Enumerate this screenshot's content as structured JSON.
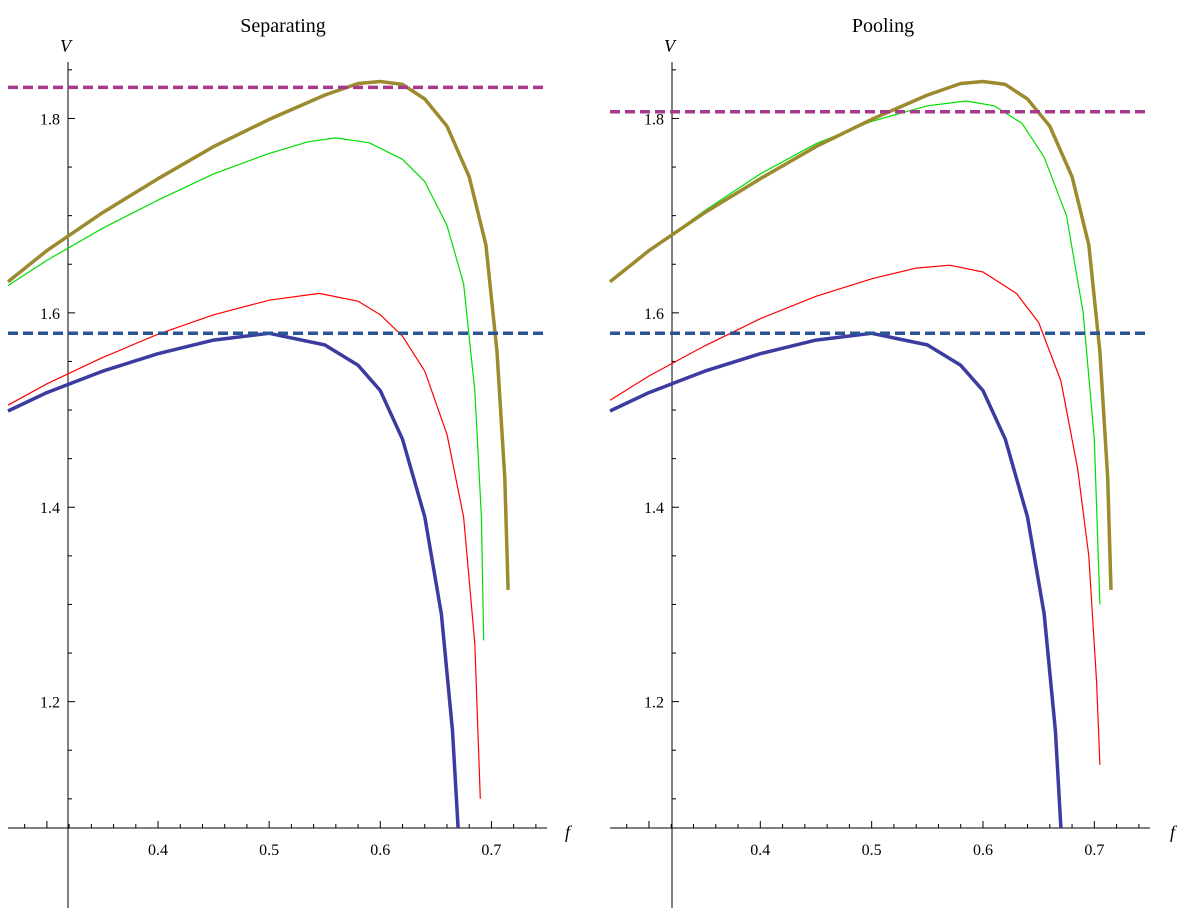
{
  "chart_data": [
    {
      "type": "line",
      "title": "Separating",
      "xlabel": "f",
      "ylabel": "V",
      "xlim": [
        0.265,
        0.75
      ],
      "ylim": [
        1.07,
        1.855
      ],
      "x_ticks": [
        0.4,
        0.5,
        0.6,
        0.7
      ],
      "x_tick_labels": [
        "0.4",
        "0.5",
        "0.6",
        "0.7"
      ],
      "y_ticks": [
        1.2,
        1.4,
        1.6,
        1.8
      ],
      "y_tick_labels": [
        "1.2",
        "1.4",
        "1.6",
        "1.8"
      ],
      "grid": false,
      "series": [
        {
          "color": "#3b3ba0",
          "style": "solid",
          "width": "thick",
          "points": [
            [
              0.265,
              1.499
            ],
            [
              0.3,
              1.518
            ],
            [
              0.35,
              1.54
            ],
            [
              0.4,
              1.558
            ],
            [
              0.45,
              1.572
            ],
            [
              0.5,
              1.579
            ],
            [
              0.55,
              1.567
            ],
            [
              0.58,
              1.546
            ],
            [
              0.6,
              1.52
            ],
            [
              0.62,
              1.47
            ],
            [
              0.64,
              1.39
            ],
            [
              0.655,
              1.29
            ],
            [
              0.665,
              1.17
            ],
            [
              0.67,
              1.07
            ]
          ]
        },
        {
          "color": "#ff0000",
          "style": "solid",
          "width": "thin",
          "points": [
            [
              0.265,
              1.505
            ],
            [
              0.3,
              1.527
            ],
            [
              0.35,
              1.554
            ],
            [
              0.4,
              1.578
            ],
            [
              0.45,
              1.598
            ],
            [
              0.5,
              1.613
            ],
            [
              0.545,
              1.62
            ],
            [
              0.58,
              1.612
            ],
            [
              0.6,
              1.598
            ],
            [
              0.62,
              1.576
            ],
            [
              0.64,
              1.54
            ],
            [
              0.66,
              1.475
            ],
            [
              0.675,
              1.39
            ],
            [
              0.685,
              1.26
            ],
            [
              0.69,
              1.1
            ]
          ]
        },
        {
          "color": "#00dd00",
          "style": "solid",
          "width": "thin",
          "points": [
            [
              0.265,
              1.628
            ],
            [
              0.3,
              1.654
            ],
            [
              0.35,
              1.687
            ],
            [
              0.4,
              1.716
            ],
            [
              0.45,
              1.743
            ],
            [
              0.5,
              1.764
            ],
            [
              0.535,
              1.776
            ],
            [
              0.56,
              1.78
            ],
            [
              0.59,
              1.775
            ],
            [
              0.62,
              1.758
            ],
            [
              0.64,
              1.735
            ],
            [
              0.66,
              1.69
            ],
            [
              0.675,
              1.63
            ],
            [
              0.685,
              1.52
            ],
            [
              0.691,
              1.39
            ],
            [
              0.693,
              1.263
            ]
          ]
        },
        {
          "color": "#9b8a2e",
          "style": "solid",
          "width": "thick",
          "points": [
            [
              0.265,
              1.632
            ],
            [
              0.3,
              1.664
            ],
            [
              0.35,
              1.703
            ],
            [
              0.4,
              1.738
            ],
            [
              0.45,
              1.771
            ],
            [
              0.5,
              1.799
            ],
            [
              0.55,
              1.824
            ],
            [
              0.58,
              1.836
            ],
            [
              0.6,
              1.838
            ],
            [
              0.62,
              1.835
            ],
            [
              0.64,
              1.82
            ],
            [
              0.66,
              1.792
            ],
            [
              0.68,
              1.74
            ],
            [
              0.695,
              1.67
            ],
            [
              0.705,
              1.56
            ],
            [
              0.712,
              1.43
            ],
            [
              0.715,
              1.315
            ]
          ]
        },
        {
          "color": "#a83a8e",
          "style": "dashed",
          "width": "thick",
          "points": [
            [
              0.265,
              1.832
            ],
            [
              0.75,
              1.832
            ]
          ]
        },
        {
          "color": "#2a5595",
          "style": "dashed",
          "width": "thick",
          "points": [
            [
              0.265,
              1.579
            ],
            [
              0.75,
              1.579
            ]
          ]
        }
      ]
    },
    {
      "type": "line",
      "title": "Pooling",
      "xlabel": "f",
      "ylabel": "V",
      "xlim": [
        0.265,
        0.75
      ],
      "ylim": [
        1.07,
        1.855
      ],
      "x_ticks": [
        0.4,
        0.5,
        0.6,
        0.7
      ],
      "x_tick_labels": [
        "0.4",
        "0.5",
        "0.6",
        "0.7"
      ],
      "y_ticks": [
        1.2,
        1.4,
        1.6,
        1.8
      ],
      "y_tick_labels": [
        "1.2",
        "1.4",
        "1.6",
        "1.8"
      ],
      "grid": false,
      "series": [
        {
          "color": "#3b3ba0",
          "style": "solid",
          "width": "thick",
          "points": [
            [
              0.265,
              1.499
            ],
            [
              0.3,
              1.518
            ],
            [
              0.35,
              1.54
            ],
            [
              0.4,
              1.558
            ],
            [
              0.45,
              1.572
            ],
            [
              0.5,
              1.579
            ],
            [
              0.55,
              1.567
            ],
            [
              0.58,
              1.546
            ],
            [
              0.6,
              1.52
            ],
            [
              0.62,
              1.47
            ],
            [
              0.64,
              1.39
            ],
            [
              0.655,
              1.29
            ],
            [
              0.665,
              1.17
            ],
            [
              0.67,
              1.07
            ]
          ]
        },
        {
          "color": "#ff0000",
          "style": "solid",
          "width": "thin",
          "points": [
            [
              0.265,
              1.51
            ],
            [
              0.3,
              1.535
            ],
            [
              0.35,
              1.566
            ],
            [
              0.4,
              1.594
            ],
            [
              0.45,
              1.617
            ],
            [
              0.5,
              1.635
            ],
            [
              0.54,
              1.646
            ],
            [
              0.57,
              1.649
            ],
            [
              0.6,
              1.642
            ],
            [
              0.63,
              1.62
            ],
            [
              0.65,
              1.59
            ],
            [
              0.67,
              1.53
            ],
            [
              0.685,
              1.44
            ],
            [
              0.695,
              1.35
            ],
            [
              0.702,
              1.22
            ],
            [
              0.705,
              1.135
            ]
          ]
        },
        {
          "color": "#00dd00",
          "style": "solid",
          "width": "thin",
          "points": [
            [
              0.265,
              1.632
            ],
            [
              0.3,
              1.664
            ],
            [
              0.35,
              1.705
            ],
            [
              0.4,
              1.743
            ],
            [
              0.45,
              1.774
            ],
            [
              0.5,
              1.797
            ],
            [
              0.55,
              1.813
            ],
            [
              0.585,
              1.818
            ],
            [
              0.61,
              1.813
            ],
            [
              0.635,
              1.795
            ],
            [
              0.655,
              1.76
            ],
            [
              0.675,
              1.7
            ],
            [
              0.69,
              1.6
            ],
            [
              0.7,
              1.47
            ],
            [
              0.705,
              1.3
            ]
          ]
        },
        {
          "color": "#9b8a2e",
          "style": "solid",
          "width": "thick",
          "points": [
            [
              0.265,
              1.632
            ],
            [
              0.3,
              1.664
            ],
            [
              0.35,
              1.703
            ],
            [
              0.4,
              1.738
            ],
            [
              0.45,
              1.771
            ],
            [
              0.5,
              1.799
            ],
            [
              0.55,
              1.824
            ],
            [
              0.58,
              1.836
            ],
            [
              0.6,
              1.838
            ],
            [
              0.62,
              1.835
            ],
            [
              0.64,
              1.82
            ],
            [
              0.66,
              1.792
            ],
            [
              0.68,
              1.74
            ],
            [
              0.695,
              1.67
            ],
            [
              0.705,
              1.56
            ],
            [
              0.712,
              1.43
            ],
            [
              0.715,
              1.315
            ]
          ]
        },
        {
          "color": "#a83a8e",
          "style": "dashed",
          "width": "thick",
          "points": [
            [
              0.265,
              1.807
            ],
            [
              0.75,
              1.807
            ]
          ]
        },
        {
          "color": "#2a5595",
          "style": "dashed",
          "width": "thick",
          "points": [
            [
              0.265,
              1.579
            ],
            [
              0.75,
              1.579
            ]
          ]
        }
      ]
    }
  ]
}
